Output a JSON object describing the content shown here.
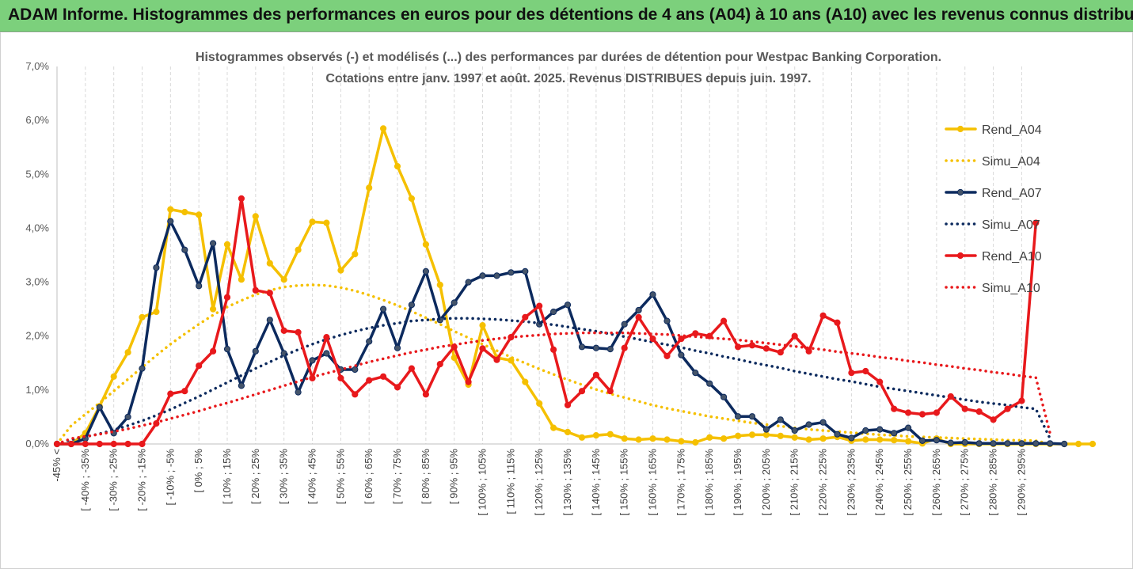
{
  "banner": {
    "title": "ADAM Informe. Histogrammes des performances en euros pour des détentions de 4 ans (A04) à 10 ans (A10) avec les revenus connus distribués"
  },
  "chart_data": {
    "type": "line",
    "title_lines": [
      "Histogrammes observés (-) et modélisés (...) des performances par durées de détention pour Westpac Banking Corporation.",
      "Cotations entre janv. 1997 et août. 2025. Revenus DISTRIBUES depuis juin. 1997."
    ],
    "xlabel": "",
    "ylabel": "",
    "ylim": [
      0,
      7
    ],
    "y_ticks": [
      "0,0%",
      "1,0%",
      "2,0%",
      "3,0%",
      "4,0%",
      "5,0%",
      "6,0%",
      "7,0%"
    ],
    "grid": "vertical dashed",
    "legend_position": "right",
    "x_labels": [
      "-45% <",
      "[ -40% ; -35%",
      "[ -30% ; -25%",
      "[ -20% ; -15%",
      "[ -10% ; -5%",
      "[ 0% ; 5%",
      "[ 10% ; 15%",
      "[ 20% ; 25%",
      "[ 30% ; 35%",
      "[ 40% ; 45%",
      "[ 50% ; 55%",
      "[ 60% ; 65%",
      "[ 70% ; 75%",
      "[ 80% ; 85%",
      "[ 90% ; 95%",
      "[ 100% ; 105%",
      "[ 110% ; 115%",
      "[ 120% ; 125%",
      "[ 130% ; 135%",
      "[ 140% ; 145%",
      "[ 150% ; 155%",
      "[ 160% ; 165%",
      "[ 170% ; 175%",
      "[ 180% ; 185%",
      "[ 190% ; 195%",
      "[ 200% ; 205%",
      "[ 210% ; 215%",
      "[ 220% ; 225%",
      "[ 230% ; 235%",
      "[ 240% ; 245%",
      "[ 250% ; 255%",
      "[ 260% ; 265%",
      "[ 270% ; 275%",
      "[ 280% ; 285%",
      "[ 290% ; 295%"
    ],
    "series": [
      {
        "name": "Rend_A04",
        "style": "solid",
        "marker": true,
        "color": "#f5c000",
        "values": [
          0,
          0,
          0.2,
          0.7,
          1.25,
          1.7,
          2.35,
          2.45,
          4.35,
          4.3,
          4.25,
          2.5,
          3.7,
          3.05,
          4.22,
          3.35,
          3.05,
          3.6,
          4.12,
          4.1,
          3.22,
          3.52,
          4.75,
          5.85,
          5.15,
          4.55,
          3.7,
          2.95,
          1.6,
          1.1,
          2.2,
          1.6,
          1.55,
          1.15,
          0.75,
          0.3,
          0.22,
          0.12,
          0.16,
          0.18,
          0.1,
          0.08,
          0.1,
          0.08,
          0.05,
          0.03,
          0.12,
          0.1,
          0.15,
          0.17,
          0.17,
          0.15,
          0.12,
          0.08,
          0.1,
          0.13,
          0.06,
          0.08,
          0.08,
          0.07,
          0.05,
          0.01,
          0.1,
          0.0,
          0.0,
          0.0,
          0.0,
          0.0,
          0.0,
          0.0,
          0.0,
          0.0,
          0.0,
          0.0
        ]
      },
      {
        "name": "Simu_A04",
        "style": "dotted",
        "marker": false,
        "color": "#f5c000",
        "values": [
          0.0,
          0.34,
          0.55,
          0.76,
          0.98,
          1.2,
          1.42,
          1.64,
          1.85,
          2.04,
          2.22,
          2.39,
          2.54,
          2.66,
          2.77,
          2.85,
          2.91,
          2.94,
          2.95,
          2.94,
          2.9,
          2.84,
          2.76,
          2.67,
          2.57,
          2.46,
          2.34,
          2.22,
          2.09,
          1.97,
          1.85,
          1.73,
          1.61,
          1.5,
          1.39,
          1.29,
          1.19,
          1.1,
          1.01,
          0.93,
          0.86,
          0.79,
          0.72,
          0.66,
          0.61,
          0.56,
          0.51,
          0.47,
          0.43,
          0.39,
          0.36,
          0.33,
          0.3,
          0.27,
          0.25,
          0.23,
          0.21,
          0.19,
          0.17,
          0.16,
          0.14,
          0.13,
          0.12,
          0.11,
          0.1,
          0.09,
          0.08,
          0.07,
          0.07,
          0.06,
          0.0
        ]
      },
      {
        "name": "Rend_A07",
        "style": "solid",
        "marker": true,
        "color": "#0c2a5e",
        "values": [
          0,
          0,
          0.1,
          0.68,
          0.2,
          0.5,
          1.4,
          3.27,
          4.13,
          3.6,
          2.93,
          3.72,
          1.76,
          1.08,
          1.72,
          2.3,
          1.68,
          0.96,
          1.55,
          1.68,
          1.38,
          1.38,
          1.9,
          2.5,
          1.78,
          2.58,
          3.2,
          2.3,
          2.62,
          3.0,
          3.12,
          3.12,
          3.18,
          3.2,
          2.22,
          2.45,
          2.58,
          1.8,
          1.78,
          1.76,
          2.22,
          2.48,
          2.77,
          2.28,
          1.65,
          1.32,
          1.12,
          0.87,
          0.51,
          0.51,
          0.27,
          0.45,
          0.25,
          0.36,
          0.4,
          0.18,
          0.11,
          0.25,
          0.27,
          0.2,
          0.3,
          0.06,
          0.07,
          0.02,
          0.03,
          0.01,
          0.01,
          0.01,
          0.01,
          0.01,
          0.01,
          0.0
        ]
      },
      {
        "name": "Simu_A07",
        "style": "dotted",
        "marker": false,
        "color": "#0c2a5e",
        "values": [
          0.0,
          0.08,
          0.13,
          0.19,
          0.26,
          0.34,
          0.43,
          0.53,
          0.64,
          0.76,
          0.88,
          1.01,
          1.14,
          1.27,
          1.4,
          1.52,
          1.64,
          1.75,
          1.85,
          1.94,
          2.02,
          2.09,
          2.15,
          2.2,
          2.24,
          2.28,
          2.3,
          2.32,
          2.33,
          2.33,
          2.32,
          2.31,
          2.29,
          2.27,
          2.24,
          2.21,
          2.17,
          2.13,
          2.09,
          2.04,
          1.99,
          1.94,
          1.89,
          1.84,
          1.79,
          1.73,
          1.68,
          1.62,
          1.57,
          1.51,
          1.46,
          1.41,
          1.35,
          1.3,
          1.25,
          1.2,
          1.16,
          1.11,
          1.06,
          1.02,
          0.98,
          0.94,
          0.9,
          0.86,
          0.82,
          0.78,
          0.75,
          0.72,
          0.68,
          0.65,
          0.1
        ]
      },
      {
        "name": "Rend_A10",
        "style": "solid",
        "marker": true,
        "color": "#e8191c",
        "values": [
          0,
          0,
          0,
          0,
          0,
          0,
          0,
          0.38,
          0.93,
          0.98,
          1.45,
          1.72,
          2.72,
          4.55,
          2.85,
          2.8,
          2.1,
          2.07,
          1.22,
          1.98,
          1.22,
          0.92,
          1.18,
          1.25,
          1.05,
          1.4,
          0.92,
          1.48,
          1.8,
          1.15,
          1.77,
          1.56,
          1.98,
          2.35,
          2.56,
          1.75,
          0.72,
          0.98,
          1.28,
          0.98,
          1.78,
          2.35,
          1.95,
          1.63,
          1.95,
          2.05,
          2.0,
          2.28,
          1.8,
          1.83,
          1.77,
          1.7,
          2.0,
          1.72,
          2.38,
          2.25,
          1.32,
          1.35,
          1.15,
          0.65,
          0.58,
          0.55,
          0.58,
          0.88,
          0.65,
          0.6,
          0.45,
          0.65,
          0.8,
          4.1
        ]
      },
      {
        "name": "Simu_A10",
        "style": "dotted",
        "marker": false,
        "color": "#e8191c",
        "values": [
          0.0,
          0.1,
          0.14,
          0.18,
          0.23,
          0.28,
          0.34,
          0.4,
          0.47,
          0.54,
          0.61,
          0.69,
          0.76,
          0.84,
          0.92,
          1.0,
          1.08,
          1.16,
          1.24,
          1.31,
          1.38,
          1.45,
          1.52,
          1.58,
          1.64,
          1.7,
          1.75,
          1.8,
          1.84,
          1.88,
          1.92,
          1.95,
          1.98,
          2.0,
          2.02,
          2.04,
          2.05,
          2.06,
          2.06,
          2.06,
          2.06,
          2.05,
          2.04,
          2.03,
          2.01,
          1.99,
          1.97,
          1.95,
          1.93,
          1.9,
          1.87,
          1.84,
          1.81,
          1.78,
          1.75,
          1.71,
          1.68,
          1.65,
          1.61,
          1.58,
          1.54,
          1.51,
          1.47,
          1.44,
          1.4,
          1.37,
          1.33,
          1.3,
          1.26,
          1.23,
          0.2
        ]
      }
    ]
  }
}
